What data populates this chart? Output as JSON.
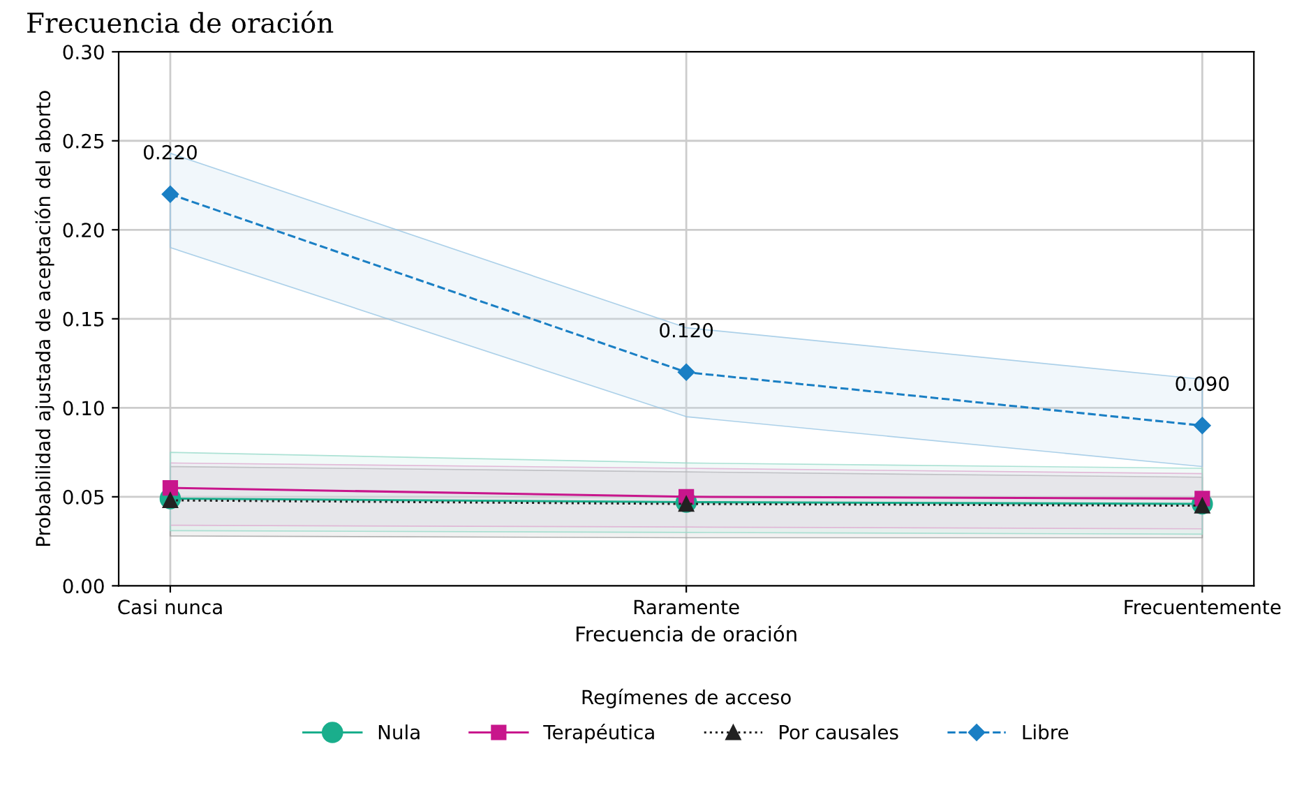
{
  "chart_data": {
    "type": "line",
    "title": "Frecuencia de oración",
    "xlabel": "Frecuencia de oración",
    "ylabel": "Probabilidad ajustada de aceptación del aborto",
    "legend_title": "Regímenes de acceso",
    "categories": [
      "Casi nunca",
      "Raramente",
      "Frecuentemente"
    ],
    "ylim": [
      0,
      0.3
    ],
    "yticks": [
      {
        "value": 0,
        "label": "0.00"
      },
      {
        "value": 0.05,
        "label": "0.05"
      },
      {
        "value": 0.1,
        "label": "0.10"
      },
      {
        "value": 0.15,
        "label": "0.15"
      },
      {
        "value": 0.2,
        "label": "0.20"
      },
      {
        "value": 0.25,
        "label": "0.25"
      },
      {
        "value": 0.3,
        "label": "0.30"
      }
    ],
    "grid": true,
    "legend": "bottom",
    "series": [
      {
        "name": "Nula",
        "color": "#1aae8c",
        "marker": "circle",
        "line_style": "solid",
        "values": [
          0.049,
          0.047,
          0.046
        ],
        "lower": [
          0.031,
          0.03,
          0.029
        ],
        "upper": [
          0.075,
          0.069,
          0.066
        ]
      },
      {
        "name": "Terapéutica",
        "color": "#c8168c",
        "marker": "square",
        "line_style": "solid",
        "values": [
          0.055,
          0.05,
          0.049
        ],
        "lower": [
          0.034,
          0.033,
          0.032
        ],
        "upper": [
          0.069,
          0.066,
          0.063
        ]
      },
      {
        "name": "Por causales",
        "color": "#222222",
        "marker": "triangle",
        "line_style": "dotted",
        "values": [
          0.048,
          0.046,
          0.045
        ],
        "lower": [
          0.028,
          0.027,
          0.027
        ],
        "upper": [
          0.067,
          0.064,
          0.061
        ]
      },
      {
        "name": "Libre",
        "color": "#1a7fc4",
        "marker": "diamond",
        "line_style": "dashed",
        "values": [
          0.22,
          0.12,
          0.09
        ],
        "lower": [
          0.19,
          0.095,
          0.067
        ],
        "upper": [
          0.243,
          0.145,
          0.116
        ],
        "value_labels": [
          "0.220",
          "0.120",
          "0.090"
        ]
      }
    ]
  }
}
